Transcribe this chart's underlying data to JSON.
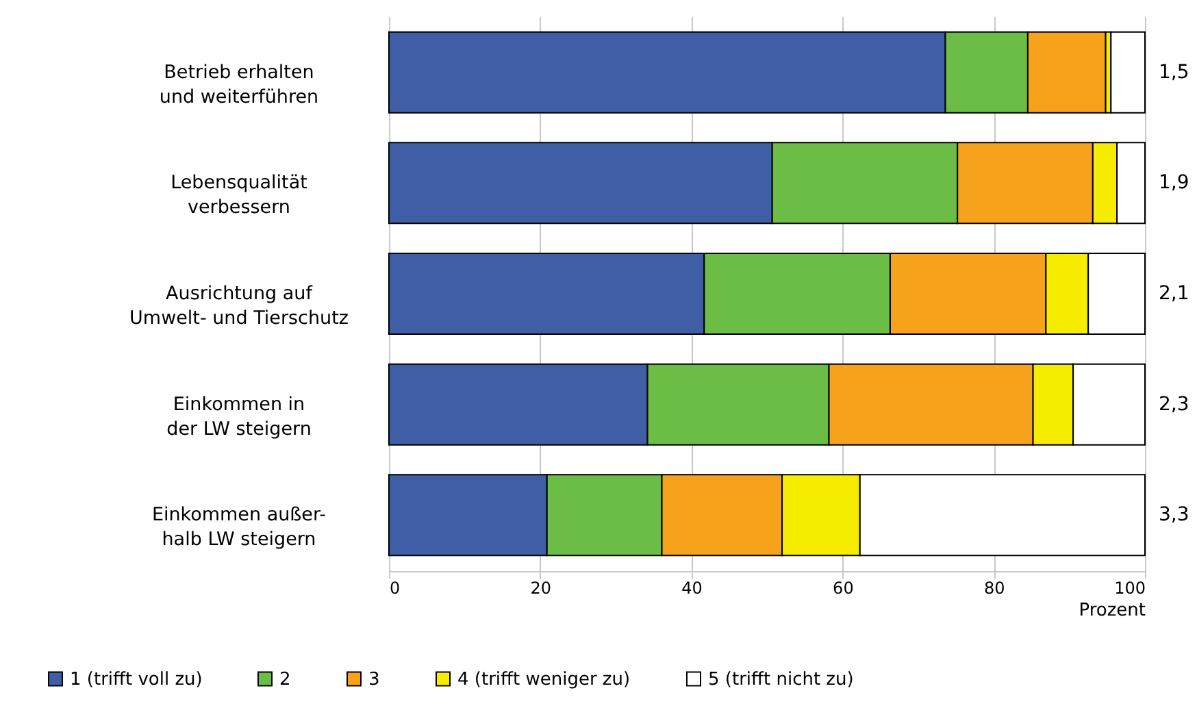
{
  "chart_data": {
    "type": "bar",
    "orientation": "horizontal",
    "stacked": true,
    "categories": [
      "Betrieb erhalten\nund weiterführen",
      "Lebensqualität\nverbessern",
      "Ausrichtung auf\nUmwelt- und Tierschutz",
      "Einkommen in\nder LW steigern",
      "Einkommen außer-\nhalb LW steigern"
    ],
    "series": [
      {
        "name": "1 (trifft voll zu)",
        "color": "#3f5ea6",
        "values": [
          73.6,
          50.7,
          41.7,
          34.2,
          20.9
        ]
      },
      {
        "name": "2",
        "color": "#6cbd45",
        "values": [
          10.9,
          24.5,
          24.6,
          24.0,
          15.2
        ]
      },
      {
        "name": "3",
        "color": "#f7a21b",
        "values": [
          10.3,
          17.9,
          20.6,
          27.0,
          15.9
        ]
      },
      {
        "name": "4 (trifft weniger zu)",
        "color": "#f5ec00",
        "values": [
          0.7,
          3.2,
          5.6,
          5.3,
          10.3
        ]
      },
      {
        "name": "5 (trifft nicht zu)",
        "color": "#ffffff",
        "values": [
          4.5,
          3.7,
          7.5,
          9.5,
          37.7
        ]
      }
    ],
    "xlim": [
      0,
      100
    ],
    "xticks": [
      0,
      20,
      40,
      60,
      80,
      100
    ],
    "xlabel": "Prozent",
    "grid": "x",
    "legend": "bottom",
    "annotations": [
      "1,5",
      "1,9",
      "2,1",
      "2,3",
      "3,3"
    ]
  }
}
